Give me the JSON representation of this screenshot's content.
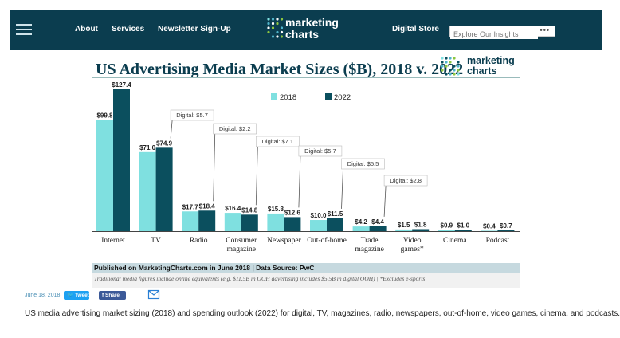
{
  "nav": {
    "links": [
      "About",
      "Services",
      "Newsletter Sign-Up"
    ],
    "logo_line1": "marketing",
    "logo_line2": "charts",
    "store_label": "Digital Store",
    "search_placeholder": "Explore Our Insights",
    "search_dots": "•••"
  },
  "chart_data": {
    "type": "bar",
    "title": "US Advertising Media Market Sizes ($B), 2018 v. 2022",
    "categories": [
      "Internet",
      "TV",
      "Radio",
      "Consumer\nmagazine",
      "Newspaper",
      "Out-of-home",
      "Trade\nmagazine",
      "Video\ngames*",
      "Cinema",
      "Podcast"
    ],
    "series": [
      {
        "name": "2018",
        "color": "#7fe0e0",
        "values": [
          99.8,
          71.0,
          17.7,
          16.4,
          15.8,
          10.0,
          4.2,
          1.5,
          0.9,
          0.4
        ],
        "labels": [
          "$99.8",
          "$71.0",
          "$17.7",
          "$16.4",
          "$15.8",
          "$10.0",
          "$4.2",
          "$1.5",
          "$0.9",
          "$0.4"
        ]
      },
      {
        "name": "2022",
        "color": "#0b4f5e",
        "values": [
          127.4,
          74.9,
          18.4,
          14.8,
          12.6,
          11.5,
          4.4,
          1.8,
          1.0,
          0.7
        ],
        "labels": [
          "$127.4",
          "$74.9",
          "$18.4",
          "$14.8",
          "$12.6",
          "$11.5",
          "$4.4",
          "$1.8",
          "$1.0",
          "$0.7"
        ]
      }
    ],
    "digital_annotations": [
      {
        "category": "TV",
        "label": "Digital: $5.7"
      },
      {
        "category": "Radio",
        "label": "Digital: $2.2"
      },
      {
        "category": "Consumer\nmagazine",
        "label": "Digital: $7.1"
      },
      {
        "category": "Newspaper",
        "label": "Digital: $5.7"
      },
      {
        "category": "Out-of-home",
        "label": "Digital: $5.5"
      },
      {
        "category": "Trade\nmagazine",
        "label": "Digital: $2.8"
      }
    ],
    "legend_position": "top-center",
    "grid": false
  },
  "chart_logo": {
    "line1": "marketing",
    "line2": "charts"
  },
  "source": "Published on MarketingCharts.com in June 2018 | Data Source: PwC",
  "footnote": "Traditional media figures include online equivalents (e.g. $11.5B in OOH advertising includes $5.5B in digital OOH) | *Excludes e-sports",
  "share": {
    "date": "June 18, 2018",
    "tweet_label": "Tweet",
    "share_label": "Share"
  },
  "caption": "US media advertising market sizing (2018) and spending outlook (2022) for digital, TV, magazines, radio, newspapers, out-of-home, video games, cinema, and podcasts.",
  "colors": {
    "nav_bg": "#0b3d4f",
    "accent_2018": "#7fe0e0",
    "accent_2022": "#0b4f5e"
  }
}
